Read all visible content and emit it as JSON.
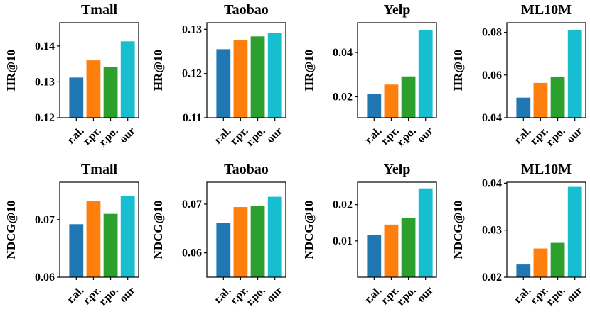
{
  "chart_data": [
    {
      "type": "bar",
      "title": "Tmall",
      "ylabel": "HR@10",
      "categories": [
        "r.al.",
        "r.pr.",
        "r.po.",
        "our"
      ],
      "values": [
        0.1312,
        0.136,
        0.1342,
        0.1413
      ],
      "ylim": [
        0.12,
        0.1465
      ],
      "yticks": [
        0.12,
        0.13,
        0.14
      ],
      "ytick_labels": [
        "0.12",
        "0.13",
        "0.14"
      ]
    },
    {
      "type": "bar",
      "title": "Taobao",
      "ylabel": "HR@10",
      "categories": [
        "r.al.",
        "r.pr.",
        "r.po.",
        "our"
      ],
      "values": [
        0.1255,
        0.1275,
        0.1284,
        0.1292
      ],
      "ylim": [
        0.11,
        0.1315
      ],
      "yticks": [
        0.11,
        0.12,
        0.13
      ],
      "ytick_labels": [
        "0.11",
        "0.12",
        "0.13"
      ]
    },
    {
      "type": "bar",
      "title": "Yelp",
      "ylabel": "HR@10",
      "categories": [
        "r.al.",
        "r.pr.",
        "r.po.",
        "our"
      ],
      "values": [
        0.0212,
        0.0255,
        0.0292,
        0.0503
      ],
      "ylim": [
        0.0105,
        0.0535
      ],
      "yticks": [
        0.02,
        0.04
      ],
      "ytick_labels": [
        "0.02",
        "0.04"
      ]
    },
    {
      "type": "bar",
      "title": "ML10M",
      "ylabel": "HR@10",
      "categories": [
        "r.al.",
        "r.pr.",
        "r.po.",
        "our"
      ],
      "values": [
        0.0494,
        0.0563,
        0.0591,
        0.081
      ],
      "ylim": [
        0.04,
        0.0845
      ],
      "yticks": [
        0.04,
        0.06,
        0.08
      ],
      "ytick_labels": [
        "0.04",
        "0.06",
        "0.08"
      ]
    },
    {
      "type": "bar",
      "title": "Tmall",
      "ylabel": "NDCG@10",
      "categories": [
        "r.al.",
        "r.pr.",
        "r.po.",
        "our"
      ],
      "values": [
        0.0692,
        0.0732,
        0.071,
        0.0741
      ],
      "ylim": [
        0.06,
        0.0765
      ],
      "yticks": [
        0.06,
        0.07
      ],
      "ytick_labels": [
        "0.06",
        "0.07"
      ]
    },
    {
      "type": "bar",
      "title": "Taobao",
      "ylabel": "NDCG@10",
      "categories": [
        "r.al.",
        "r.pr.",
        "r.po.",
        "our"
      ],
      "values": [
        0.0662,
        0.0694,
        0.0697,
        0.0715
      ],
      "ylim": [
        0.055,
        0.0745
      ],
      "yticks": [
        0.06,
        0.07
      ],
      "ytick_labels": [
        "0.06",
        "0.07"
      ]
    },
    {
      "type": "bar",
      "title": "Yelp",
      "ylabel": "NDCG@10",
      "categories": [
        "r.al.",
        "r.pr.",
        "r.po.",
        "our"
      ],
      "values": [
        0.0116,
        0.0145,
        0.0163,
        0.0245
      ],
      "ylim": [
        0.0,
        0.0262
      ],
      "yticks": [
        0.01,
        0.02
      ],
      "ytick_labels": [
        "0.01",
        "0.02"
      ]
    },
    {
      "type": "bar",
      "title": "ML10M",
      "ylabel": "NDCG@10",
      "categories": [
        "r.al.",
        "r.pr.",
        "r.po.",
        "our"
      ],
      "values": [
        0.0227,
        0.0261,
        0.0273,
        0.0392
      ],
      "ylim": [
        0.02,
        0.0402
      ],
      "yticks": [
        0.02,
        0.03,
        0.04
      ],
      "ytick_labels": [
        "0.02",
        "0.03",
        "0.04"
      ]
    }
  ],
  "colors": [
    "#1f77b4",
    "#ff7f0e",
    "#2ca02c",
    "#17becf"
  ]
}
